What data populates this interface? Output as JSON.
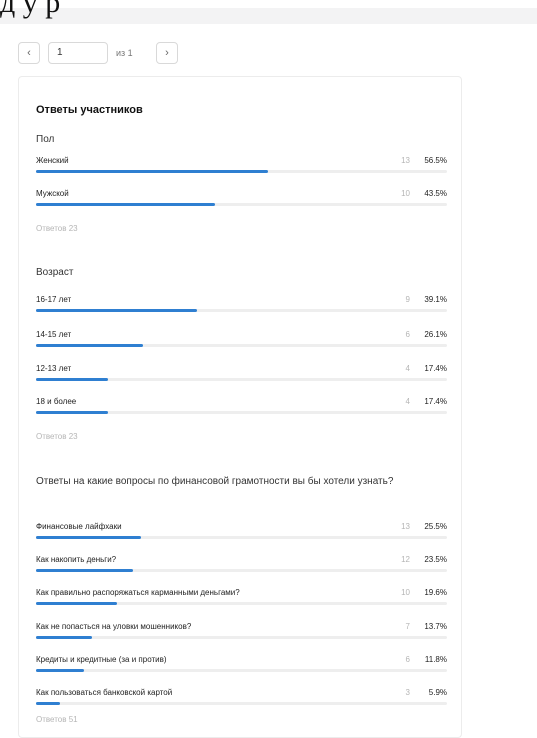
{
  "header": {
    "partial_text": "д    у   р"
  },
  "pager": {
    "prev_icon": "‹",
    "next_icon": "›",
    "page_value": "1",
    "of_label": "из 1"
  },
  "card": {
    "title": "Ответы участников"
  },
  "questions": [
    {
      "title": "Пол",
      "total": "Ответов 23",
      "rows": [
        {
          "label": "Женский",
          "count": "13",
          "pct": "56.5%",
          "share": 0.565
        },
        {
          "label": "Мужской",
          "count": "10",
          "pct": "43.5%",
          "share": 0.435
        }
      ]
    },
    {
      "title": "Возраст",
      "total": "Ответов 23",
      "rows": [
        {
          "label": "16-17 лет",
          "count": "9",
          "pct": "39.1%",
          "share": 0.391
        },
        {
          "label": "14-15 лет",
          "count": "6",
          "pct": "26.1%",
          "share": 0.261
        },
        {
          "label": "12-13 лет",
          "count": "4",
          "pct": "17.4%",
          "share": 0.174
        },
        {
          "label": "18 и более",
          "count": "4",
          "pct": "17.4%",
          "share": 0.174
        }
      ]
    },
    {
      "title": "Ответы на какие вопросы по финансовой грамотности вы бы хотели узнать?",
      "total": "Ответов 51",
      "rows": [
        {
          "label": "Финансовые лайфхаки",
          "count": "13",
          "pct": "25.5%",
          "share": 0.255
        },
        {
          "label": "Как накопить деньги?",
          "count": "12",
          "pct": "23.5%",
          "share": 0.235
        },
        {
          "label": "Как правильно распоряжаться карманными деньгами?",
          "count": "10",
          "pct": "19.6%",
          "share": 0.196
        },
        {
          "label": "Как не попасться на уловки мошенников?",
          "count": "7",
          "pct": "13.7%",
          "share": 0.137
        },
        {
          "label": "Кредиты и кредитные (за и против)",
          "count": "6",
          "pct": "11.8%",
          "share": 0.118
        },
        {
          "label": "Как пользоваться банковской картой",
          "count": "3",
          "pct": "5.9%",
          "share": 0.059
        }
      ]
    }
  ],
  "colors": {
    "bar_fill": "#2f7fd1",
    "bar_track": "#eeeeee",
    "muted_text": "#b5b5b5"
  }
}
